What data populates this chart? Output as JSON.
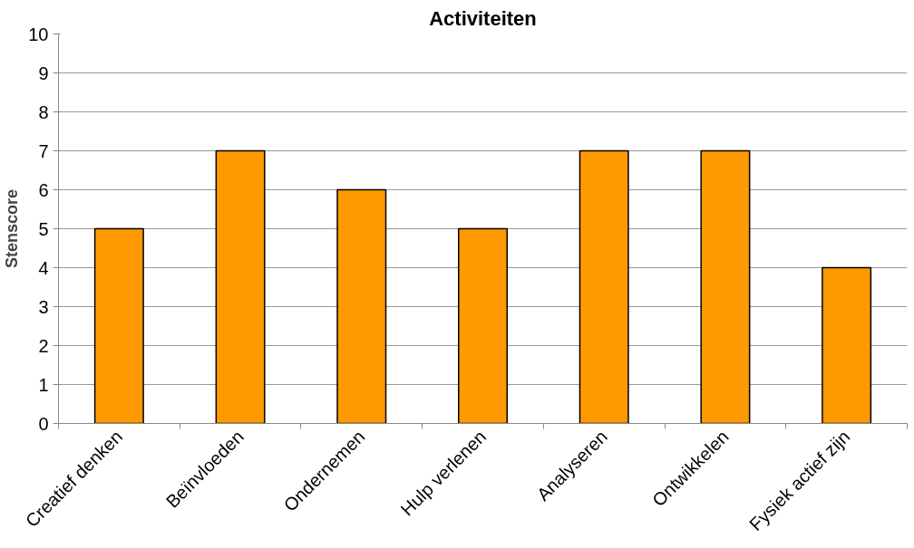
{
  "chart_data": {
    "type": "bar",
    "title": "Activiteiten",
    "ylabel": "Stenscore",
    "categories": [
      "Creatief denken",
      "Beïnvloeden",
      "Ondernemen",
      "Hulp verlenen",
      "Analyseren",
      "Ontwikkelen",
      "Fysiek actief zijn"
    ],
    "values": [
      5,
      7,
      6,
      5,
      7,
      7,
      4
    ],
    "color": "#ff9900",
    "ylim": [
      0,
      10
    ],
    "yticks": [
      0,
      1,
      2,
      3,
      4,
      5,
      6,
      7,
      8,
      9,
      10
    ],
    "grid": "y"
  }
}
